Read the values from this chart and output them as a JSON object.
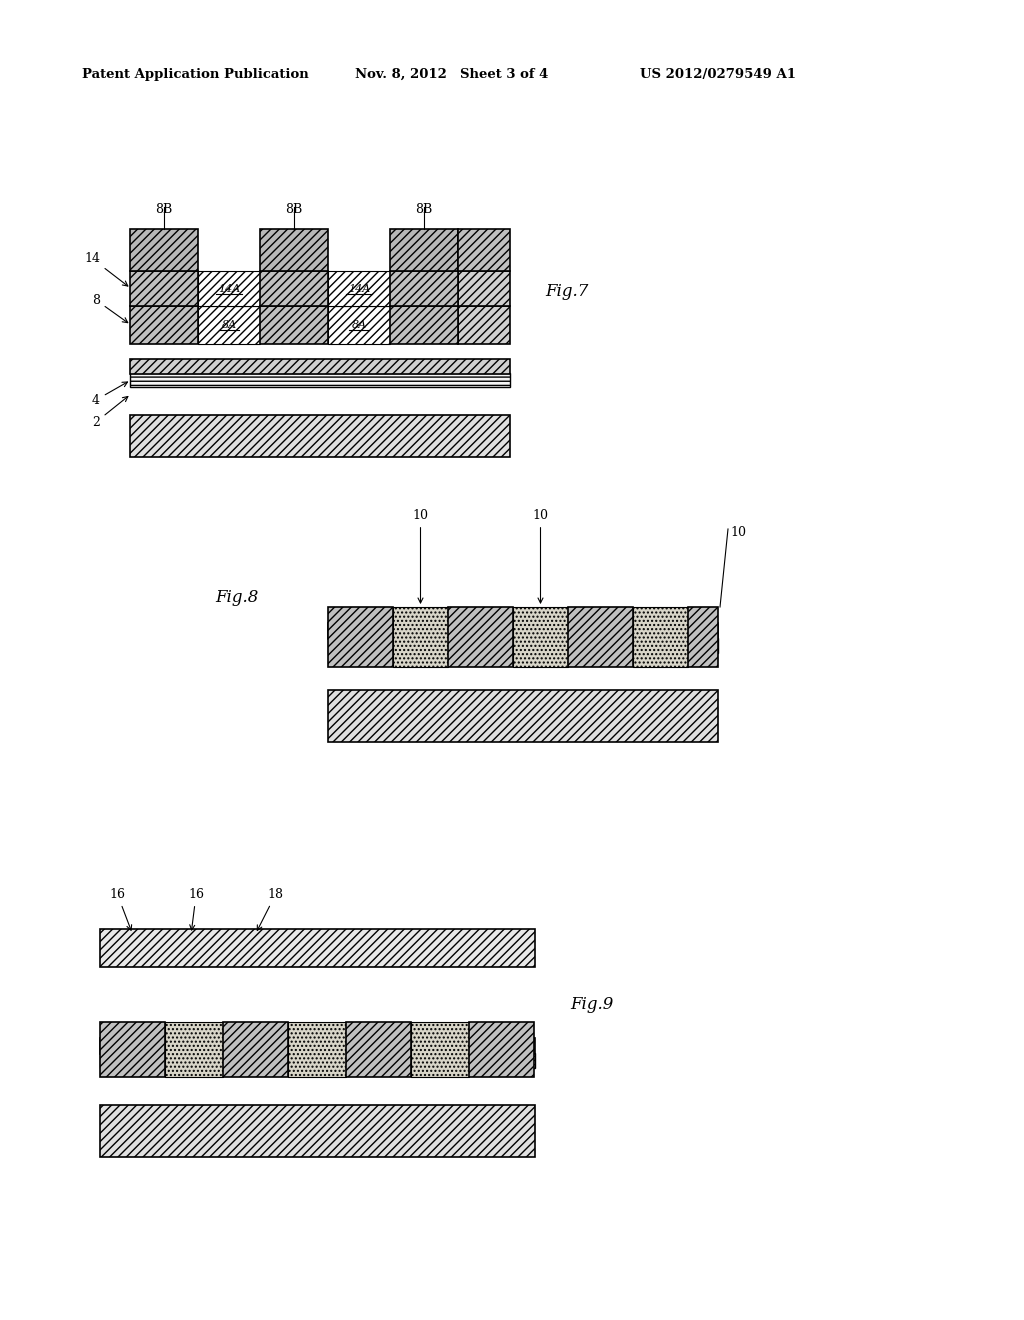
{
  "bg_color": "#ffffff",
  "header_text": "Patent Application Publication",
  "header_date": "Nov. 8, 2012",
  "header_sheet": "Sheet 3 of 4",
  "header_patent": "US 2012/0279549 A1",
  "fig7_label": "Fig.7",
  "fig8_label": "Fig.8",
  "fig9_label": "Fig.9"
}
